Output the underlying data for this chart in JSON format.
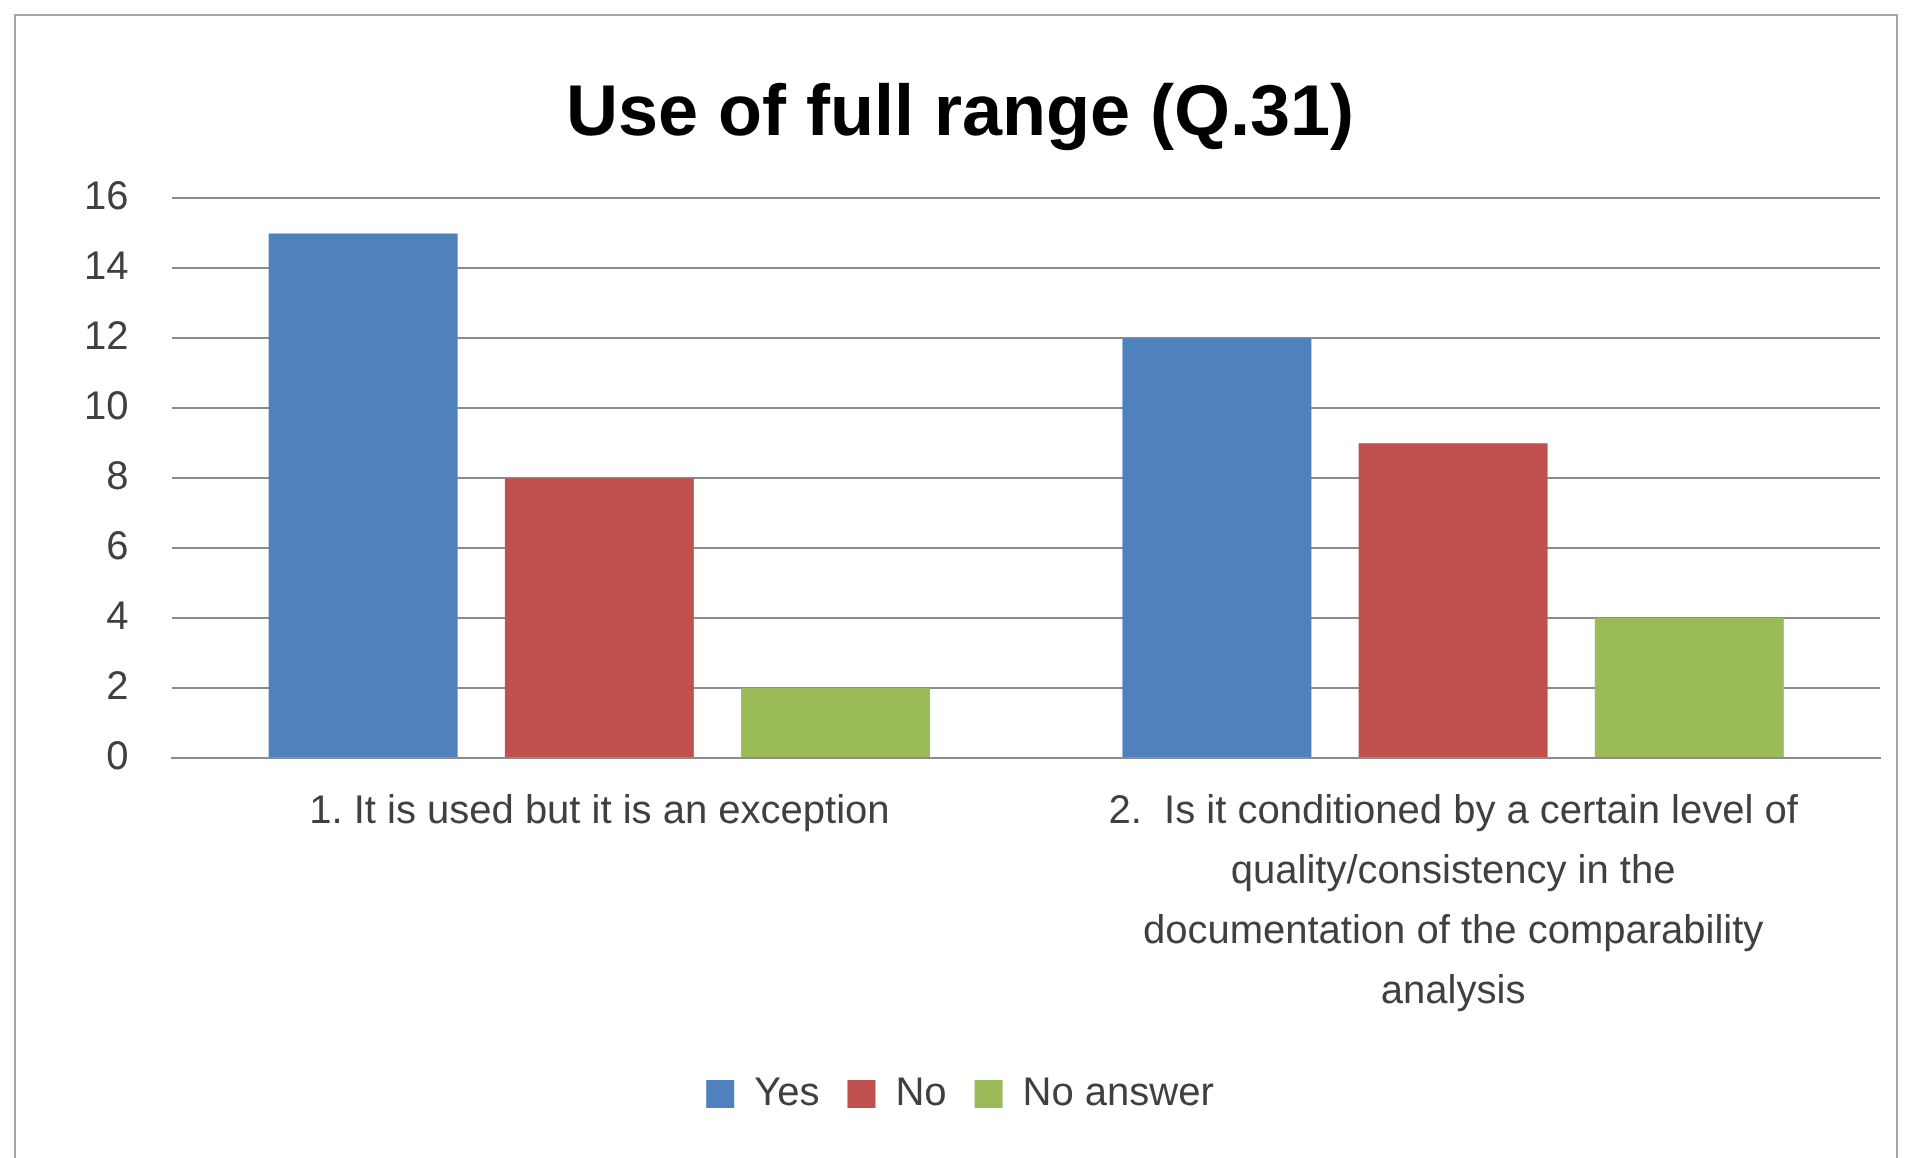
{
  "chart_data": {
    "type": "bar",
    "title": "Use of full range (Q.31)",
    "categories": [
      "1. It is used but it is an exception",
      "2.  Is it conditioned by a certain level of quality/consistency in the documentation of the comparability analysis"
    ],
    "series": [
      {
        "name": "Yes",
        "color": "#4f81bd",
        "values": [
          15,
          12
        ]
      },
      {
        "name": "No",
        "color": "#c0504d",
        "values": [
          8,
          9
        ]
      },
      {
        "name": "No answer",
        "color": "#9bbb59",
        "values": [
          2,
          4
        ]
      }
    ],
    "ylim": [
      0,
      16
    ],
    "yticks": [
      0,
      2,
      4,
      6,
      8,
      10,
      12,
      14,
      16
    ],
    "grid": "y",
    "legend": "bottom"
  }
}
